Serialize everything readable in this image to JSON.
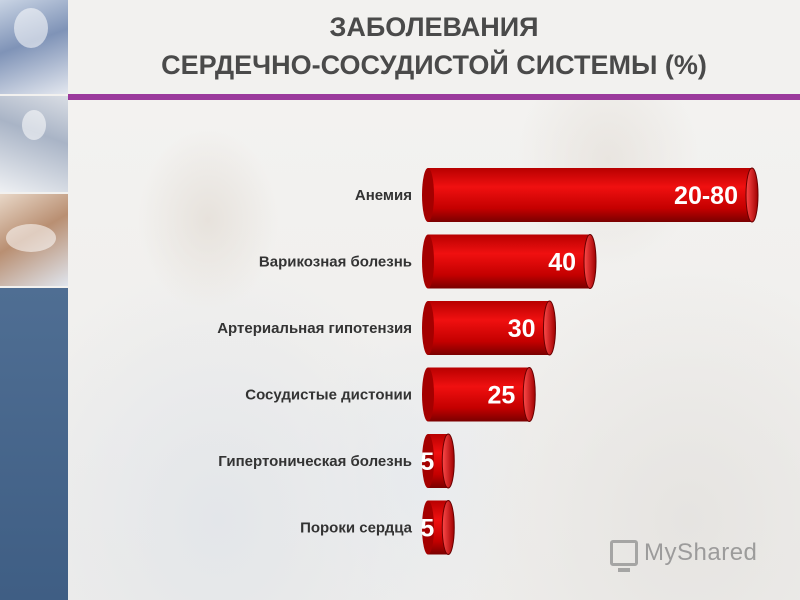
{
  "title": {
    "line1": "ЗАБОЛЕВАНИЯ",
    "line2": "СЕРДЕЧНО-СОСУДИСТОЙ СИСТЕМЫ (%)"
  },
  "colors": {
    "bar": "#d40000",
    "bar_dark": "#8a0000",
    "accent_rule": "#9b3a9c",
    "left_strip": "#46678f"
  },
  "chart_data": {
    "type": "bar",
    "orientation": "horizontal",
    "title": "ЗАБОЛЕВАНИЯ СЕРДЕЧНО-СОСУДИСТОЙ СИСТЕМЫ (%)",
    "categories": [
      "Анемия",
      "Варикозная болезнь",
      "Артериальная гипотензия",
      "Сосудистые дистонии",
      "Гипертоническая болезнь",
      "Пороки сердца"
    ],
    "values": [
      80,
      40,
      30,
      25,
      5,
      5
    ],
    "value_labels": [
      "20-80",
      "40",
      "30",
      "25",
      "5",
      "5"
    ],
    "xlim": [
      0,
      80
    ],
    "grid": false
  },
  "watermark": {
    "text": "MyShared",
    "icon": "presentation-screen-icon"
  }
}
